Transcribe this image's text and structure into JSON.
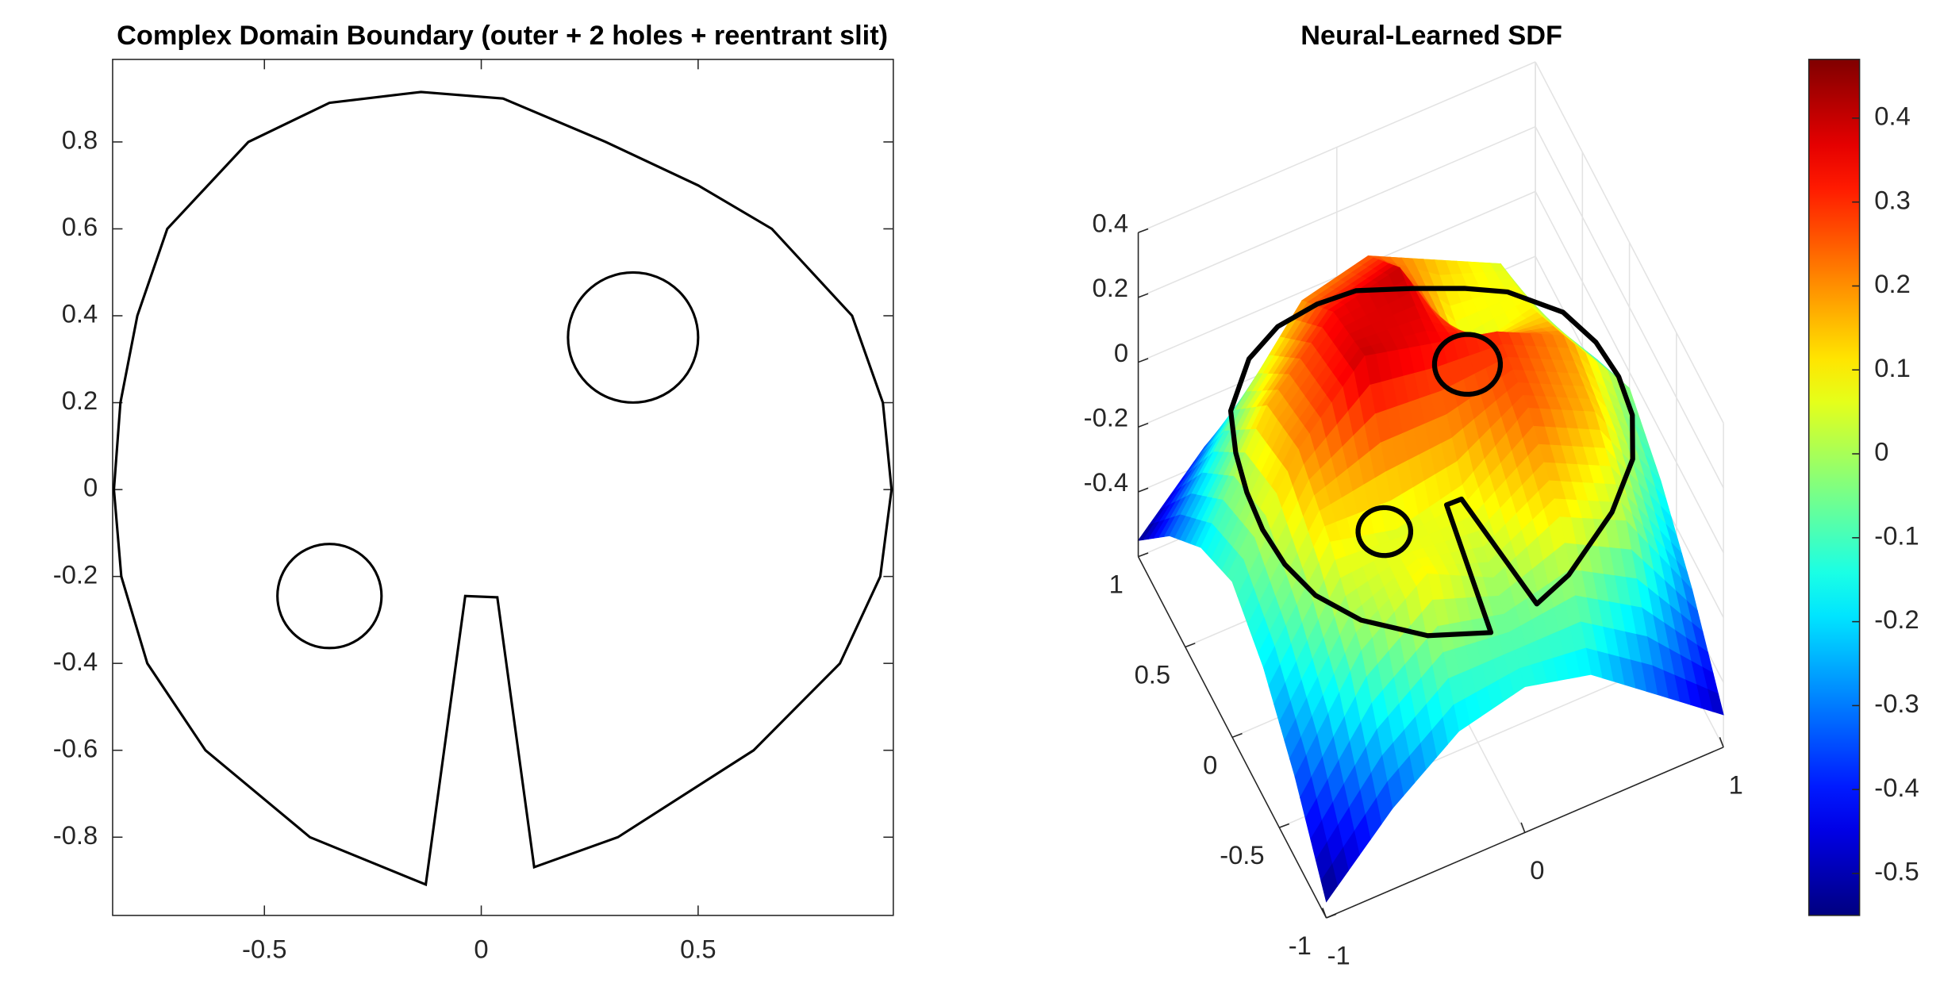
{
  "chart_data": [
    {
      "type": "boundary",
      "title": "Complex Domain Boundary (outer + 2 holes + reentrant slit)",
      "color": "#000000",
      "xlim": [
        -0.85,
        0.95
      ],
      "ylim": [
        -0.98,
        0.99
      ],
      "xticks": [
        -0.5,
        0,
        0.5
      ],
      "yticks": [
        -0.8,
        -0.6,
        -0.4,
        -0.2,
        0,
        0.2,
        0.4,
        0.6,
        0.8
      ],
      "outline": {
        "x": [
          -0.847,
          -0.832,
          -0.793,
          -0.724,
          -0.537,
          -0.35,
          -0.139,
          0.05,
          0.287,
          0.5,
          0.67,
          0.855,
          0.926,
          0.946,
          0.92,
          0.827,
          0.628,
          0.315,
          0.122,
          0.037,
          -0.037,
          -0.128,
          -0.395,
          -0.636,
          -0.77,
          -0.83
        ],
        "y": [
          0,
          0.2,
          0.4,
          0.6,
          0.8,
          0.89,
          0.915,
          0.9,
          0.8,
          0.7,
          0.6,
          0.4,
          0.2,
          0,
          -0.2,
          -0.4,
          -0.6,
          -0.8,
          -0.869,
          -0.248,
          -0.245,
          -0.909,
          -0.8,
          -0.6,
          -0.4,
          -0.2
        ]
      },
      "holes": [
        {
          "x": 0.35,
          "y": 0.35,
          "r": 0.15
        },
        {
          "x": -0.35,
          "y": -0.245,
          "r": 0.12
        }
      ]
    },
    {
      "type": "surface",
      "title": "Neural-Learned SDF",
      "colormap": "jet",
      "x": [
        -1,
        -0.667,
        -0.333,
        0,
        0.333,
        0.667,
        1
      ],
      "y": [
        -1,
        -0.667,
        -0.333,
        0,
        0.333,
        0.667,
        1
      ],
      "z": [
        [
          -0.55,
          -0.35,
          -0.2,
          -0.15,
          -0.2,
          -0.35,
          -0.5
        ],
        [
          -0.35,
          -0.05,
          0.1,
          0.0,
          0.1,
          0.0,
          -0.3
        ],
        [
          -0.2,
          0.1,
          0.05,
          0.1,
          0.25,
          0.15,
          -0.15
        ],
        [
          -0.12,
          0.2,
          0.4,
          0.35,
          0.3,
          0.2,
          -0.05
        ],
        [
          -0.2,
          0.15,
          0.35,
          0.4,
          0.05,
          0.1,
          -0.15
        ],
        [
          -0.35,
          -0.05,
          0.2,
          0.25,
          0.15,
          0.05,
          -0.3
        ],
        [
          -0.55,
          -0.35,
          -0.2,
          -0.12,
          -0.15,
          -0.3,
          -0.5
        ]
      ],
      "xlim": [
        -1,
        1
      ],
      "ylim": [
        -1,
        1
      ],
      "zlim": [
        -0.6,
        0.4
      ],
      "clim": [
        -0.55,
        0.47
      ],
      "xticks": [
        -1,
        0,
        1
      ],
      "yticks": [
        -1,
        -0.5,
        0,
        0.5,
        1
      ],
      "zticks": [
        -0.4,
        -0.2,
        0,
        0.2,
        0.4
      ],
      "cticks": [
        -0.5,
        -0.4,
        -0.3,
        -0.2,
        -0.1,
        0,
        0.1,
        0.2,
        0.3,
        0.4
      ],
      "grid": true
    }
  ]
}
